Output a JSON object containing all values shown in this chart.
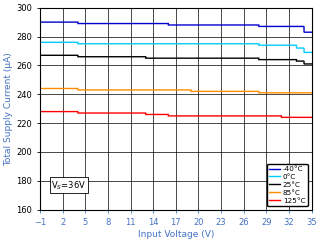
{
  "xlabel": "Input Voltage (V)",
  "ylabel": "Total Supply Current (μA)",
  "annotation": "V$_S$=36V",
  "xlim": [
    -1,
    35
  ],
  "ylim": [
    160,
    300
  ],
  "xticks": [
    -1,
    2,
    5,
    8,
    11,
    14,
    17,
    20,
    23,
    26,
    29,
    32,
    35
  ],
  "yticks": [
    160,
    180,
    200,
    220,
    240,
    260,
    280,
    300
  ],
  "label_color": "#4472C4",
  "tick_color": "#4472C4",
  "grid_color": "#000000",
  "series": [
    {
      "label": "-40°C",
      "color": "#0000CC",
      "x": [
        -1,
        4,
        4.01,
        13,
        13.01,
        16,
        16.01,
        19,
        19.01,
        28,
        28.01,
        31,
        31.01,
        33,
        33.01,
        34,
        34.01,
        35
      ],
      "y": [
        290,
        290,
        289,
        289,
        289,
        289,
        288,
        288,
        288,
        288,
        287,
        287,
        287,
        287,
        287,
        287,
        283,
        283
      ]
    },
    {
      "label": "0°C",
      "color": "#00CCFF",
      "x": [
        -1,
        4,
        4.01,
        13,
        13.01,
        28,
        28.01,
        31,
        31.01,
        33,
        33.01,
        34,
        34.01,
        35
      ],
      "y": [
        276,
        276,
        275,
        275,
        275,
        275,
        274,
        274,
        274,
        274,
        272,
        272,
        269,
        269
      ]
    },
    {
      "label": "25°C",
      "color": "#000000",
      "x": [
        -1,
        4,
        4.01,
        13,
        13.01,
        16,
        16.01,
        28,
        28.01,
        31,
        31.01,
        33,
        33.01,
        34,
        34.01,
        35
      ],
      "y": [
        267,
        267,
        266,
        266,
        265,
        265,
        265,
        265,
        264,
        264,
        264,
        264,
        263,
        263,
        261,
        261
      ]
    },
    {
      "label": "85°C",
      "color": "#FF8C00",
      "x": [
        -1,
        4,
        4.01,
        13,
        13.01,
        19,
        19.01,
        28,
        28.01,
        31,
        31.01,
        35
      ],
      "y": [
        244,
        244,
        243,
        243,
        243,
        243,
        242,
        242,
        241,
        241,
        241,
        241
      ]
    },
    {
      "label": "125°C",
      "color": "#FF0000",
      "x": [
        -1,
        4,
        4.01,
        13,
        13.01,
        16,
        16.01,
        28,
        28.01,
        31,
        31.01,
        35
      ],
      "y": [
        228,
        228,
        227,
        227,
        226,
        226,
        225,
        225,
        225,
        225,
        224,
        224
      ]
    }
  ]
}
